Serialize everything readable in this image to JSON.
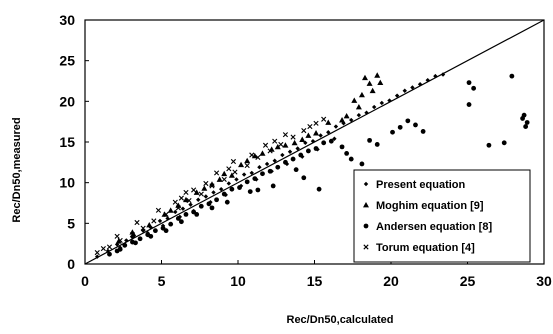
{
  "chart_data": {
    "type": "scatter",
    "xlabel": "Rec/Dn50,calculated",
    "ylabel": "Rec/Dn50,measured",
    "xlim": [
      0,
      30
    ],
    "ylim": [
      0,
      30
    ],
    "x_ticks": [
      "0",
      "5",
      "10",
      "15",
      "20",
      "25",
      "30"
    ],
    "y_ticks": [
      "0",
      "5",
      "10",
      "15",
      "20",
      "25",
      "30"
    ],
    "grid": false,
    "legend_position": "bottom-right",
    "reference_line": {
      "from": [
        0,
        0
      ],
      "to": [
        30,
        30
      ]
    },
    "series": [
      {
        "name": "Present equation",
        "marker": "diamond",
        "color": "#000000",
        "points": [
          [
            0.8,
            0.9
          ],
          [
            1.5,
            1.6
          ],
          [
            2.1,
            2.4
          ],
          [
            2.7,
            2.9
          ],
          [
            3.2,
            3.5
          ],
          [
            3.8,
            4.1
          ],
          [
            4.3,
            4.5
          ],
          [
            4.9,
            5.3
          ],
          [
            5.4,
            5.6
          ],
          [
            5.9,
            6.4
          ],
          [
            6.4,
            6.8
          ],
          [
            6.9,
            7.3
          ],
          [
            7.4,
            7.9
          ],
          [
            7.9,
            8.3
          ],
          [
            8.4,
            8.8
          ],
          [
            8.9,
            9.2
          ],
          [
            9.4,
            9.9
          ],
          [
            9.9,
            10.4
          ],
          [
            10.4,
            11.0
          ],
          [
            10.9,
            11.2
          ],
          [
            11.4,
            11.9
          ],
          [
            11.9,
            12.3
          ],
          [
            12.4,
            12.7
          ],
          [
            12.9,
            13.4
          ],
          [
            13.4,
            13.8
          ],
          [
            13.9,
            14.2
          ],
          [
            14.4,
            14.9
          ],
          [
            14.9,
            15.1
          ],
          [
            15.4,
            15.8
          ],
          [
            15.9,
            16.2
          ],
          [
            16.4,
            16.9
          ],
          [
            16.9,
            17.3
          ],
          [
            17.4,
            17.7
          ],
          [
            17.9,
            18.3
          ],
          [
            18.4,
            18.6
          ],
          [
            18.9,
            19.3
          ],
          [
            19.4,
            19.8
          ],
          [
            19.9,
            20.1
          ],
          [
            20.4,
            20.7
          ],
          [
            20.9,
            21.3
          ],
          [
            21.4,
            21.7
          ],
          [
            21.9,
            22.1
          ],
          [
            22.4,
            22.6
          ],
          [
            22.9,
            23.1
          ],
          [
            23.4,
            23.3
          ],
          [
            6.2,
            5.8
          ],
          [
            7.1,
            6.5
          ],
          [
            8.2,
            7.6
          ],
          [
            9.2,
            8.5
          ],
          [
            10.2,
            9.6
          ],
          [
            11.2,
            10.4
          ],
          [
            12.2,
            11.4
          ],
          [
            13.2,
            12.3
          ],
          [
            14.2,
            13.2
          ],
          [
            15.2,
            14.1
          ],
          [
            4.1,
            3.8
          ],
          [
            5.1,
            4.7
          ],
          [
            3.1,
            3.3
          ],
          [
            2.3,
            2.0
          ],
          [
            16.3,
            15.4
          ]
        ]
      },
      {
        "name": "Moghim equation [9]",
        "marker": "triangle",
        "color": "#000000",
        "points": [
          [
            2.2,
            2.8
          ],
          [
            3.1,
            3.9
          ],
          [
            4.2,
            4.8
          ],
          [
            5.2,
            6.1
          ],
          [
            6.1,
            7.2
          ],
          [
            7.3,
            8.8
          ],
          [
            8.3,
            9.8
          ],
          [
            9.1,
            11.1
          ],
          [
            10.2,
            12.2
          ],
          [
            11.1,
            13.3
          ],
          [
            12.2,
            14.1
          ],
          [
            13.1,
            14.6
          ],
          [
            14.2,
            15.3
          ],
          [
            15.1,
            16.1
          ],
          [
            15.9,
            17.4
          ],
          [
            17.1,
            18.2
          ],
          [
            17.6,
            20.1
          ],
          [
            18.1,
            20.8
          ],
          [
            18.6,
            22.2
          ],
          [
            19.1,
            23.2
          ],
          [
            18.3,
            22.9
          ],
          [
            19.3,
            22.3
          ],
          [
            18.8,
            21.3
          ],
          [
            17.9,
            19.3
          ],
          [
            16.8,
            17.7
          ],
          [
            5.6,
            6.6
          ],
          [
            6.6,
            7.9
          ],
          [
            7.8,
            9.3
          ],
          [
            8.8,
            10.4
          ],
          [
            9.6,
            10.9
          ],
          [
            10.6,
            12.7
          ],
          [
            11.6,
            13.6
          ],
          [
            12.6,
            14.4
          ],
          [
            13.7,
            14.9
          ],
          [
            14.6,
            15.8
          ]
        ]
      },
      {
        "name": "Andersen equation [8]",
        "marker": "circle",
        "color": "#000000",
        "points": [
          [
            1.6,
            1.2
          ],
          [
            2.1,
            1.6
          ],
          [
            2.6,
            2.3
          ],
          [
            3.1,
            2.7
          ],
          [
            3.6,
            3.1
          ],
          [
            4.1,
            3.6
          ],
          [
            4.6,
            4.1
          ],
          [
            5.1,
            4.4
          ],
          [
            5.6,
            4.9
          ],
          [
            6.1,
            5.6
          ],
          [
            6.6,
            6.1
          ],
          [
            7.1,
            6.4
          ],
          [
            7.6,
            7.1
          ],
          [
            8.1,
            7.4
          ],
          [
            8.6,
            7.9
          ],
          [
            9.1,
            8.6
          ],
          [
            9.6,
            9.2
          ],
          [
            10.1,
            9.4
          ],
          [
            10.6,
            10.1
          ],
          [
            11.1,
            10.5
          ],
          [
            11.6,
            11.1
          ],
          [
            12.1,
            11.4
          ],
          [
            12.6,
            11.9
          ],
          [
            13.1,
            12.5
          ],
          [
            13.6,
            12.9
          ],
          [
            14.1,
            13.4
          ],
          [
            14.6,
            13.9
          ],
          [
            15.1,
            14.2
          ],
          [
            15.6,
            14.9
          ],
          [
            16.1,
            15.1
          ],
          [
            17.1,
            13.6
          ],
          [
            17.4,
            12.9
          ],
          [
            18.1,
            12.3
          ],
          [
            18.6,
            15.2
          ],
          [
            19.1,
            14.7
          ],
          [
            20.1,
            16.2
          ],
          [
            20.6,
            16.8
          ],
          [
            21.1,
            17.6
          ],
          [
            21.6,
            17.1
          ],
          [
            22.1,
            16.3
          ],
          [
            25.1,
            22.3
          ],
          [
            25.4,
            21.6
          ],
          [
            25.1,
            19.6
          ],
          [
            26.4,
            14.6
          ],
          [
            27.4,
            14.9
          ],
          [
            27.9,
            23.1
          ],
          [
            28.6,
            17.9
          ],
          [
            28.9,
            17.4
          ],
          [
            28.7,
            18.3
          ],
          [
            28.8,
            16.9
          ],
          [
            15.3,
            9.2
          ],
          [
            14.3,
            10.6
          ],
          [
            12.3,
            9.6
          ],
          [
            11.3,
            9.1
          ],
          [
            9.3,
            7.6
          ],
          [
            8.3,
            6.9
          ],
          [
            7.3,
            6.1
          ],
          [
            6.3,
            5.2
          ],
          [
            5.3,
            4.1
          ],
          [
            4.3,
            3.4
          ],
          [
            3.3,
            2.6
          ],
          [
            2.3,
            1.8
          ],
          [
            10.8,
            8.9
          ],
          [
            13.8,
            11.6
          ],
          [
            16.8,
            14.4
          ]
        ]
      },
      {
        "name": "Torum equation [4]",
        "marker": "x",
        "color": "#000000",
        "points": [
          [
            0.8,
            1.4
          ],
          [
            1.6,
            2.1
          ],
          [
            2.3,
            2.9
          ],
          [
            3.1,
            3.6
          ],
          [
            3.8,
            4.4
          ],
          [
            4.5,
            5.3
          ],
          [
            5.3,
            6.1
          ],
          [
            6.1,
            6.9
          ],
          [
            6.8,
            7.8
          ],
          [
            7.6,
            8.6
          ],
          [
            8.3,
            9.6
          ],
          [
            9.1,
            10.4
          ],
          [
            9.8,
            11.3
          ],
          [
            10.6,
            12.1
          ],
          [
            11.3,
            13.1
          ],
          [
            12.1,
            13.9
          ],
          [
            12.8,
            14.7
          ],
          [
            13.6,
            15.6
          ],
          [
            14.3,
            16.4
          ],
          [
            15.1,
            17.3
          ],
          [
            4.8,
            6.6
          ],
          [
            6.3,
            8.1
          ],
          [
            7.9,
            9.9
          ],
          [
            9.4,
            11.7
          ],
          [
            10.9,
            13.4
          ],
          [
            3.4,
            5.1
          ],
          [
            2.1,
            3.4
          ],
          [
            1.2,
            1.9
          ],
          [
            8.6,
            11.2
          ],
          [
            11.8,
            14.6
          ],
          [
            13.1,
            15.9
          ],
          [
            5.9,
            7.6
          ],
          [
            7.1,
            9.1
          ],
          [
            14.7,
            16.9
          ],
          [
            15.6,
            17.8
          ],
          [
            6.6,
            8.8
          ],
          [
            9.7,
            12.6
          ],
          [
            12.4,
            15.1
          ]
        ]
      }
    ]
  }
}
